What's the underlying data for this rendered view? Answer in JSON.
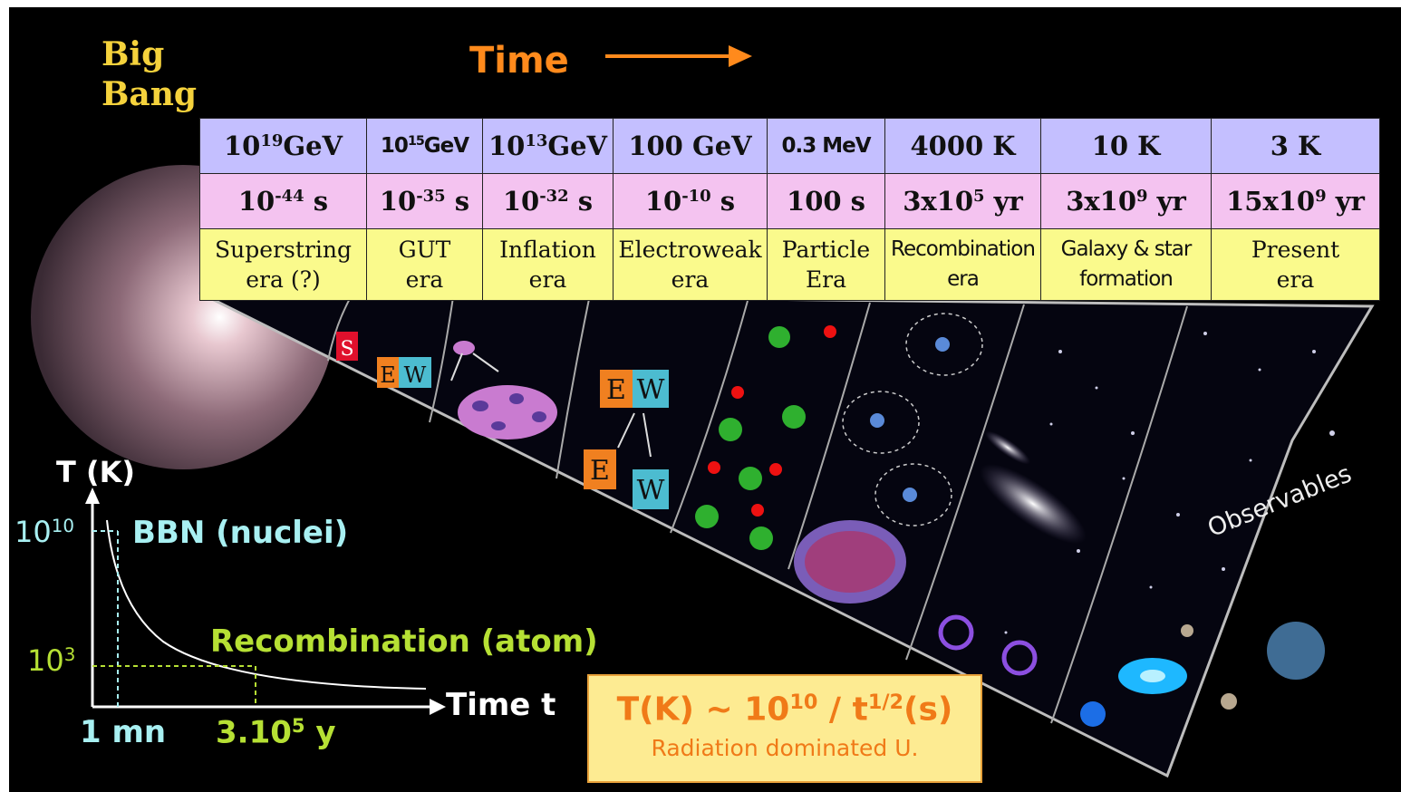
{
  "big_bang": {
    "line1": "Big",
    "line2": "Bang"
  },
  "time_title": "Time",
  "table": {
    "columns": [
      {
        "energy_base": "10",
        "energy_sup": "19",
        "energy_unit": "GeV",
        "time_base": "10",
        "time_sup": "-44",
        "time_unit": " s",
        "era_line1": "Superstring",
        "era_line2": "era (?)"
      },
      {
        "energy_base": "10",
        "energy_sup": "15",
        "energy_unit": "GeV",
        "time_base": "10",
        "time_sup": "-35",
        "time_unit": " s",
        "era_line1": "GUT",
        "era_line2": "era"
      },
      {
        "energy_base": "10",
        "energy_sup": "13",
        "energy_unit": "GeV",
        "time_base": "10",
        "time_sup": "-32",
        "time_unit": " s",
        "era_line1": "Inflation",
        "era_line2": "era"
      },
      {
        "energy_base": "100 GeV",
        "energy_sup": "",
        "energy_unit": "",
        "time_base": "10",
        "time_sup": "-10",
        "time_unit": " s",
        "era_line1": "Electroweak",
        "era_line2": "era"
      },
      {
        "energy_base": "0.3 MeV",
        "energy_sup": "",
        "energy_unit": "",
        "time_base": "100 s",
        "time_sup": "",
        "time_unit": "",
        "era_line1": "Particle",
        "era_line2": "Era"
      },
      {
        "energy_base": "4000 K",
        "energy_sup": "",
        "energy_unit": "",
        "time_base": "3x10",
        "time_sup": "5",
        "time_unit": " yr",
        "era_line1": "Recombination",
        "era_line2": "era"
      },
      {
        "energy_base": "10 K",
        "energy_sup": "",
        "energy_unit": "",
        "time_base": "3x10",
        "time_sup": "9",
        "time_unit": " yr",
        "era_line1": "Galaxy & star",
        "era_line2": "formation"
      },
      {
        "energy_base": "3 K",
        "energy_sup": "",
        "energy_unit": "",
        "time_base": "15x10",
        "time_sup": "9",
        "time_unit": " yr",
        "era_line1": "Present",
        "era_line2": "era"
      }
    ]
  },
  "funnel_labels": {
    "s": "S",
    "e": "E",
    "w": "W"
  },
  "observables": "Observables",
  "graph": {
    "y_axis": "T (K)",
    "y_tick_1_base": "10",
    "y_tick_1_sup": "10",
    "y_tick_2_base": "10",
    "y_tick_2_sup": "3",
    "bbn": "BBN (nuclei)",
    "recombination": "Recombination (atom)",
    "x_axis": "Time t",
    "x_tick_1": "1 mn",
    "x_tick_2_base": "3.10",
    "x_tick_2_sup": "5",
    "x_tick_2_unit": " y"
  },
  "formula": {
    "lhs": "T(K) ~ 10",
    "sup1": "10",
    "mid": " / t",
    "sup2": "1/2",
    "rhs": "(s)",
    "subtitle": "Radiation dominated U."
  },
  "colors": {
    "background": "#000000",
    "energy_row": "#c4bfff",
    "time_row": "#f4c3f0",
    "era_row": "#fafa8c",
    "orange": "#ff8a1c",
    "cyan": "#a8f0f2",
    "green": "#b6e034"
  }
}
